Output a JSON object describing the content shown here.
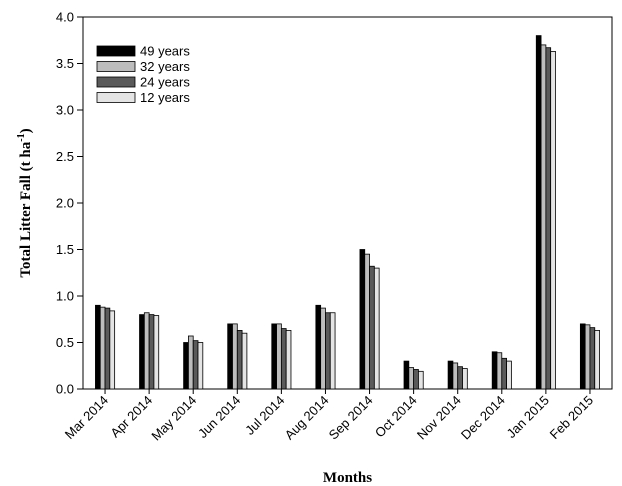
{
  "chart_data": {
    "type": "bar",
    "xlabel": "Months",
    "ylabel": "Total Litter Fall (t ha",
    "ylabel_sup": "-1",
    "ylabel_close": ")",
    "ylim": [
      0,
      4.0
    ],
    "yticks": [
      "0.0",
      "0.5",
      "1.0",
      "1.5",
      "2.0",
      "2.5",
      "3.0",
      "3.5",
      "4.0"
    ],
    "grid": false,
    "legend_position": "top-left",
    "categories": [
      "Mar 2014",
      "Apr 2014",
      "May 2014",
      "Jun 2014",
      "Jul 2014",
      "Aug 2014",
      "Sep 2014",
      "Oct 2014",
      "Nov 2014",
      "Dec 2014",
      "Jan 2015",
      "Feb 2015"
    ],
    "series": [
      {
        "name": "49 years",
        "color": "#000000",
        "values": [
          0.9,
          0.8,
          0.5,
          0.7,
          0.7,
          0.9,
          1.5,
          0.3,
          0.3,
          0.4,
          3.8,
          0.7
        ]
      },
      {
        "name": "32 years",
        "color": "#bdbdbd",
        "values": [
          0.88,
          0.82,
          0.57,
          0.7,
          0.7,
          0.87,
          1.45,
          0.23,
          0.28,
          0.39,
          3.7,
          0.69
        ]
      },
      {
        "name": "24 years",
        "color": "#5a5a5a",
        "values": [
          0.87,
          0.8,
          0.52,
          0.63,
          0.65,
          0.82,
          1.32,
          0.21,
          0.24,
          0.33,
          3.67,
          0.66
        ]
      },
      {
        "name": "12 years",
        "color": "#e4e4e4",
        "values": [
          0.84,
          0.79,
          0.5,
          0.6,
          0.63,
          0.82,
          1.3,
          0.19,
          0.22,
          0.3,
          3.63,
          0.63
        ]
      }
    ]
  }
}
